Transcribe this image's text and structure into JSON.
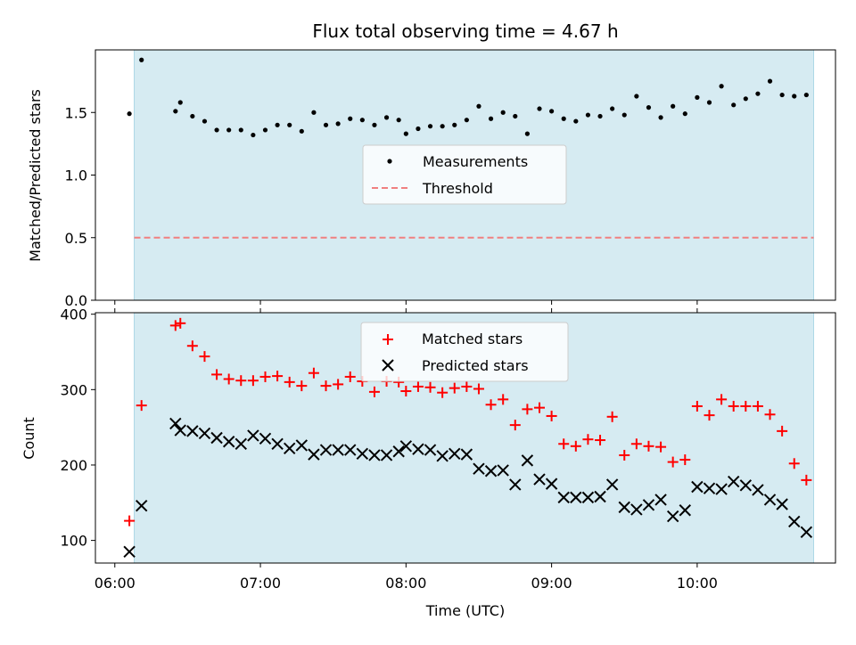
{
  "chart_data": [
    {
      "type": "scatter",
      "title": "Flux total observing time = 4.67 h",
      "ylabel": "Matched/Predicted stars",
      "xlabel": "",
      "ylim": [
        0,
        2.0
      ],
      "yticks": [
        0.0,
        0.5,
        1.0,
        1.5
      ],
      "ytick_labels": [
        "0.0",
        "0.5",
        "1.0",
        "1.5"
      ],
      "shaded_interval": [
        "06:08",
        "10:48"
      ],
      "legend_position": "center",
      "series": [
        {
          "name": "Measurements",
          "marker": "dot",
          "color": "#000000",
          "x": [
            "06:06",
            "06:11",
            "06:25",
            "06:27",
            "06:32",
            "06:37",
            "06:42",
            "06:47",
            "06:52",
            "06:57",
            "07:02",
            "07:07",
            "07:12",
            "07:17",
            "07:22",
            "07:27",
            "07:32",
            "07:37",
            "07:42",
            "07:47",
            "07:52",
            "07:57",
            "08:00",
            "08:05",
            "08:10",
            "08:15",
            "08:20",
            "08:25",
            "08:30",
            "08:35",
            "08:40",
            "08:45",
            "08:50",
            "08:55",
            "09:00",
            "09:05",
            "09:10",
            "09:15",
            "09:20",
            "09:25",
            "09:30",
            "09:35",
            "09:40",
            "09:45",
            "09:50",
            "09:55",
            "10:00",
            "10:05",
            "10:10",
            "10:15",
            "10:20",
            "10:25",
            "10:30",
            "10:35",
            "10:40",
            "10:45"
          ],
          "y": [
            1.49,
            1.92,
            1.51,
            1.58,
            1.47,
            1.43,
            1.36,
            1.36,
            1.36,
            1.32,
            1.36,
            1.4,
            1.4,
            1.35,
            1.5,
            1.4,
            1.41,
            1.45,
            1.44,
            1.4,
            1.46,
            1.44,
            1.33,
            1.37,
            1.39,
            1.39,
            1.4,
            1.44,
            1.55,
            1.45,
            1.5,
            1.47,
            1.33,
            1.53,
            1.51,
            1.45,
            1.43,
            1.48,
            1.47,
            1.53,
            1.48,
            1.63,
            1.54,
            1.46,
            1.55,
            1.49,
            1.62,
            1.58,
            1.71,
            1.56,
            1.61,
            1.65,
            1.75,
            1.64,
            1.63,
            1.64
          ]
        },
        {
          "name": "Threshold",
          "marker": "dashed-line",
          "color": "#f08080",
          "x": [
            "06:08",
            "10:48"
          ],
          "y": [
            0.5,
            0.5
          ]
        }
      ]
    },
    {
      "type": "scatter",
      "title": "",
      "ylabel": "Count",
      "xlabel": "Time (UTC)",
      "ylim": [
        70,
        402
      ],
      "yticks": [
        100,
        200,
        300,
        400
      ],
      "ytick_labels": [
        "100",
        "200",
        "300",
        "400"
      ],
      "xlim": [
        "05:52",
        "10:57"
      ],
      "xticks": [
        "06:00",
        "07:00",
        "08:00",
        "09:00",
        "10:00"
      ],
      "xtick_labels": [
        "06:00",
        "07:00",
        "08:00",
        "09:00",
        "10:00"
      ],
      "shaded_interval": [
        "06:08",
        "10:48"
      ],
      "legend_position": "upper center",
      "series": [
        {
          "name": "Matched stars",
          "marker": "plus",
          "color": "#ff0000",
          "x": [
            "06:06",
            "06:11",
            "06:25",
            "06:27",
            "06:32",
            "06:37",
            "06:42",
            "06:47",
            "06:52",
            "06:57",
            "07:02",
            "07:07",
            "07:12",
            "07:17",
            "07:22",
            "07:27",
            "07:32",
            "07:37",
            "07:42",
            "07:47",
            "07:52",
            "07:57",
            "08:00",
            "08:05",
            "08:10",
            "08:15",
            "08:20",
            "08:25",
            "08:30",
            "08:35",
            "08:40",
            "08:45",
            "08:50",
            "08:55",
            "09:00",
            "09:05",
            "09:10",
            "09:15",
            "09:20",
            "09:25",
            "09:30",
            "09:35",
            "09:40",
            "09:45",
            "09:50",
            "09:55",
            "10:00",
            "10:05",
            "10:10",
            "10:15",
            "10:20",
            "10:25",
            "10:30",
            "10:35",
            "10:40",
            "10:45"
          ],
          "y": [
            126,
            279,
            385,
            388,
            358,
            344,
            320,
            314,
            312,
            312,
            317,
            318,
            310,
            305,
            322,
            305,
            307,
            317,
            311,
            297,
            311,
            310,
            298,
            304,
            303,
            296,
            302,
            304,
            301,
            280,
            287,
            253,
            274,
            276,
            265,
            228,
            225,
            234,
            233,
            264,
            213,
            228,
            225,
            224,
            204,
            207,
            278,
            266,
            287,
            278,
            278,
            278,
            267,
            245,
            202,
            180
          ]
        },
        {
          "name": "Predicted stars",
          "marker": "x",
          "color": "#000000",
          "x": [
            "06:06",
            "06:11",
            "06:25",
            "06:27",
            "06:32",
            "06:37",
            "06:42",
            "06:47",
            "06:52",
            "06:57",
            "07:02",
            "07:07",
            "07:12",
            "07:17",
            "07:22",
            "07:27",
            "07:32",
            "07:37",
            "07:42",
            "07:47",
            "07:52",
            "07:57",
            "08:00",
            "08:05",
            "08:10",
            "08:15",
            "08:20",
            "08:25",
            "08:30",
            "08:35",
            "08:40",
            "08:45",
            "08:50",
            "08:55",
            "09:00",
            "09:05",
            "09:10",
            "09:15",
            "09:20",
            "09:25",
            "09:30",
            "09:35",
            "09:40",
            "09:45",
            "09:50",
            "09:55",
            "10:00",
            "10:05",
            "10:10",
            "10:15",
            "10:20",
            "10:25",
            "10:30",
            "10:35",
            "10:40",
            "10:45"
          ],
          "y": [
            85,
            146,
            255,
            246,
            245,
            242,
            236,
            231,
            228,
            239,
            235,
            228,
            222,
            226,
            214,
            220,
            220,
            220,
            215,
            213,
            213,
            218,
            225,
            221,
            220,
            212,
            215,
            214,
            195,
            192,
            193,
            174,
            206,
            181,
            175,
            157,
            157,
            157,
            158,
            174,
            144,
            141,
            147,
            154,
            132,
            140,
            171,
            169,
            168,
            178,
            173,
            167,
            154,
            148,
            125,
            111
          ]
        }
      ]
    }
  ]
}
